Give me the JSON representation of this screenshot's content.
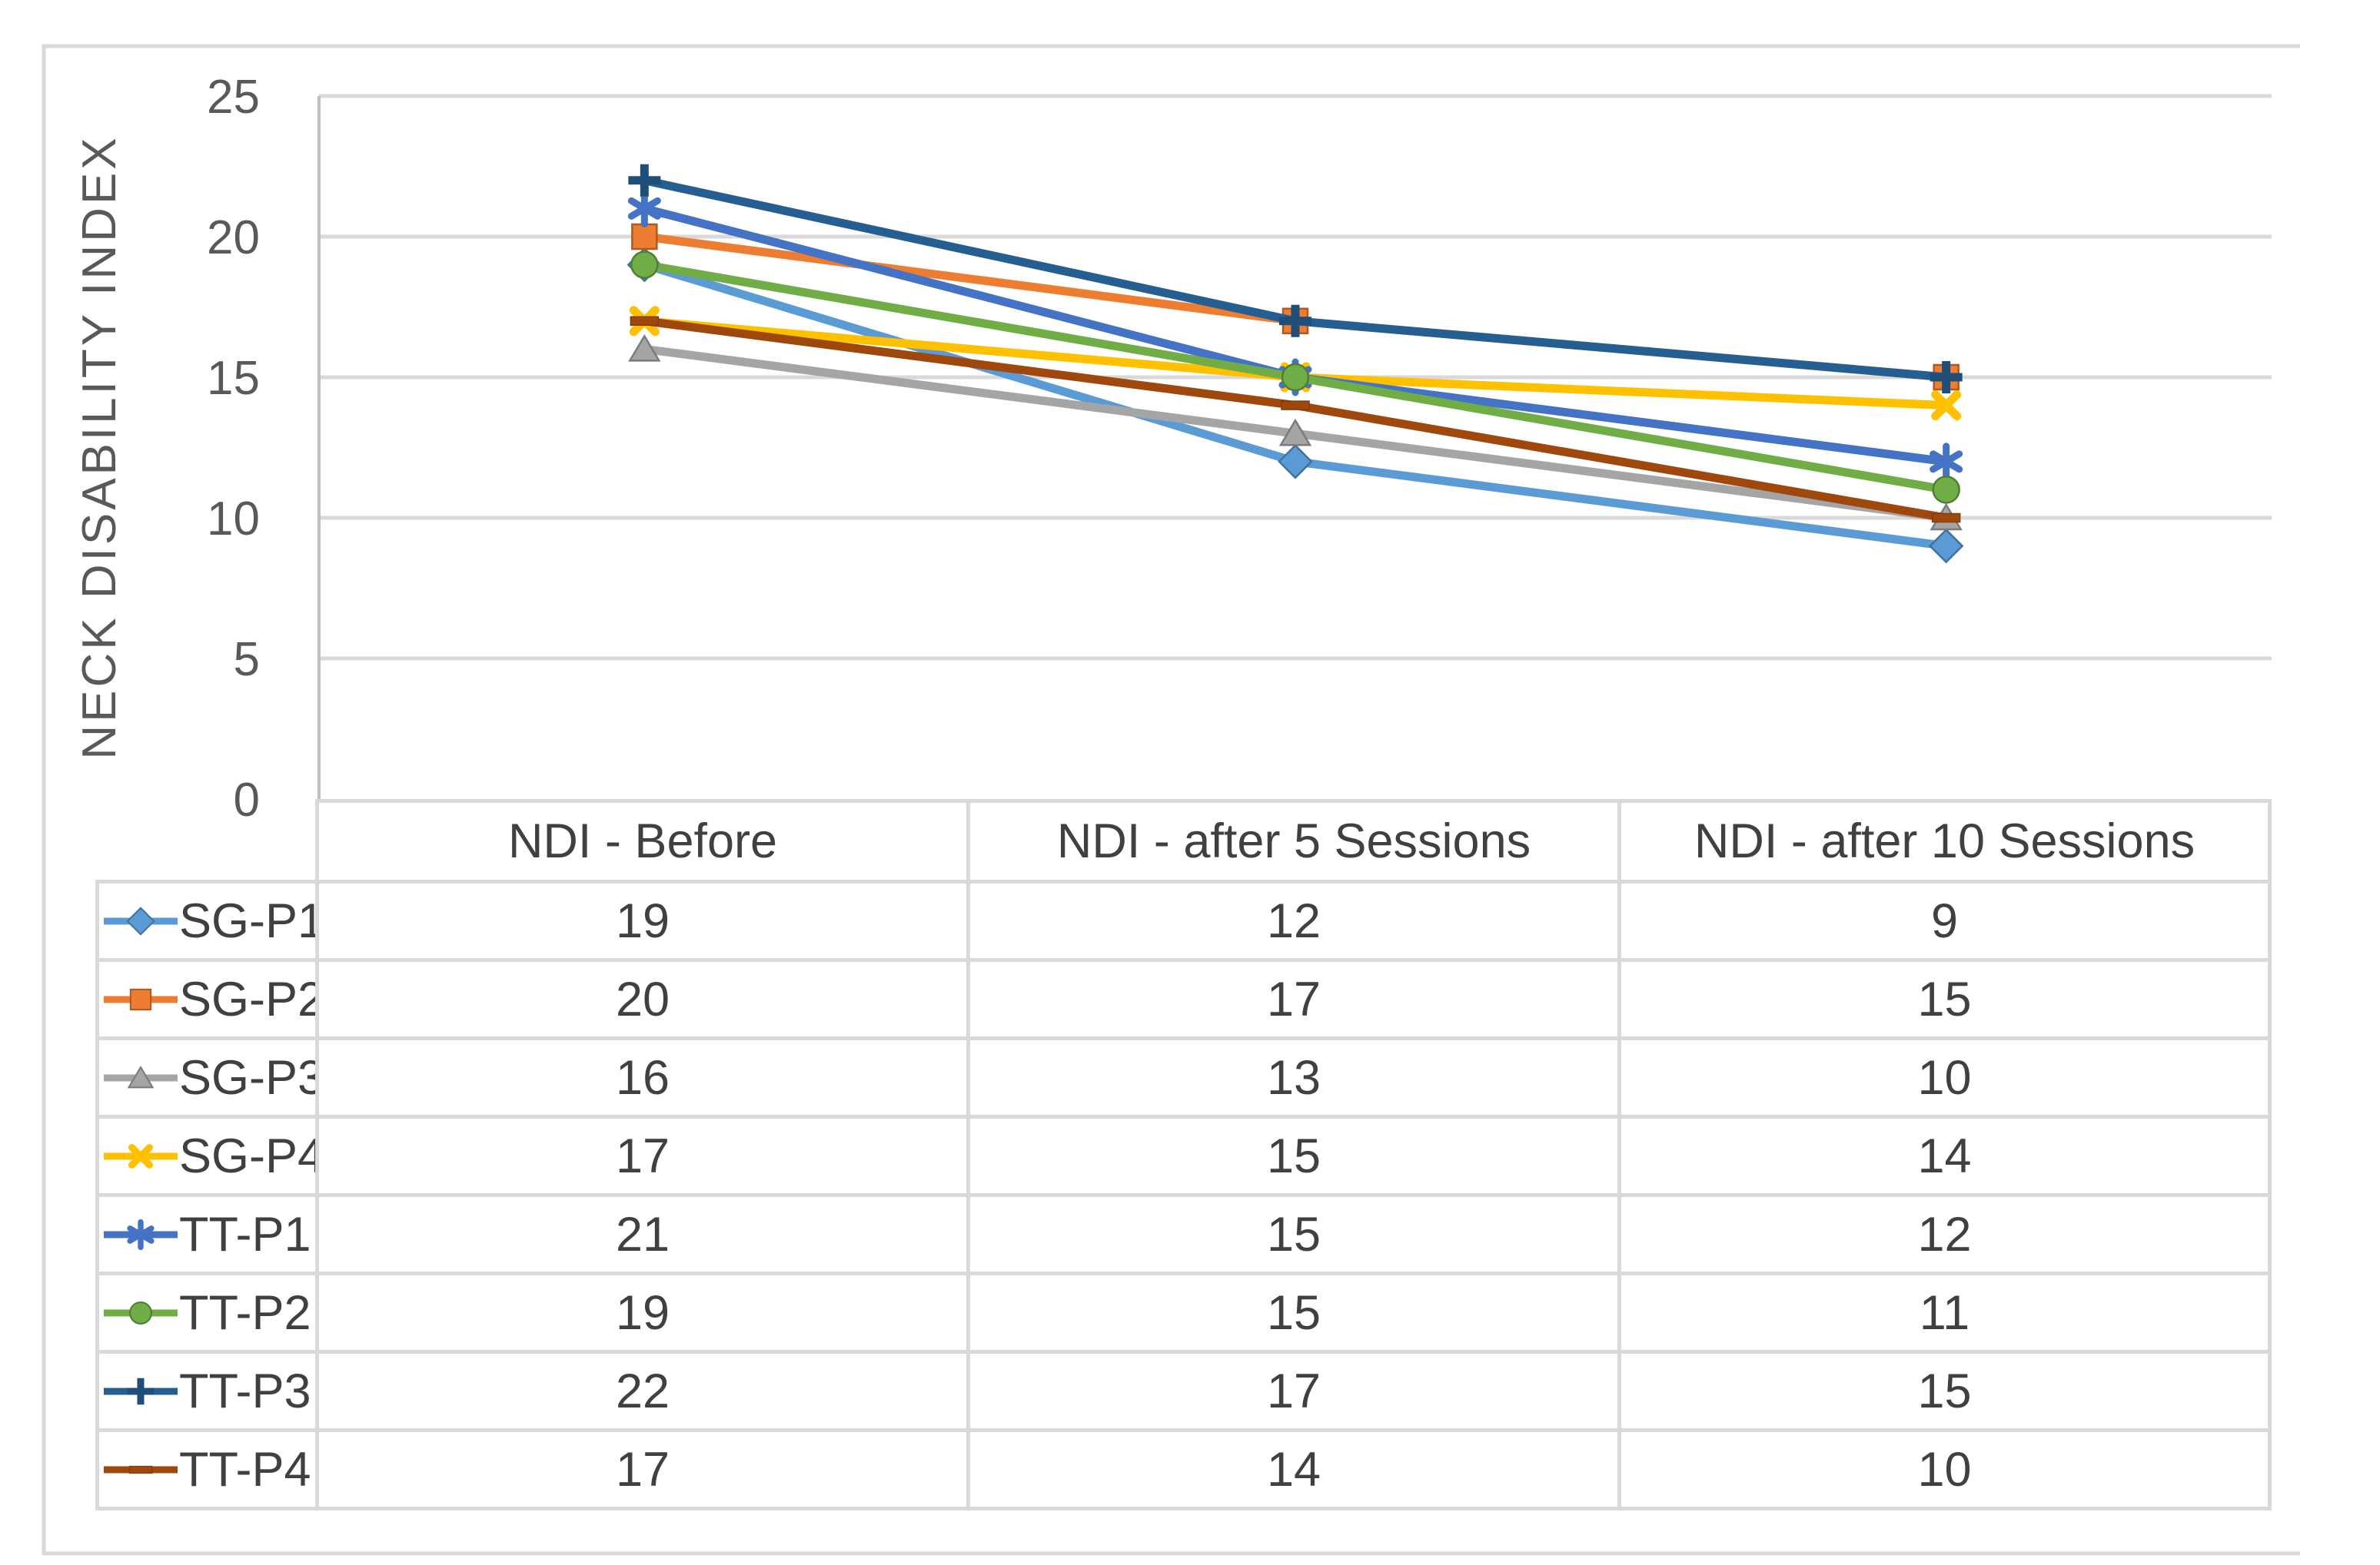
{
  "chart_data": {
    "type": "line",
    "title": "",
    "xlabel": "",
    "ylabel": "NECK DISABILITY INDEX",
    "ylim": [
      0,
      25
    ],
    "yticks": [
      0,
      5,
      10,
      15,
      20,
      25
    ],
    "grid": true,
    "legend_position": "table-left-keys",
    "categories": [
      "NDI - Before",
      "NDI - after 5 Sessions",
      "NDI - after 10 Sessions"
    ],
    "series": [
      {
        "name": "SG-P1",
        "values": [
          19,
          12,
          9
        ],
        "color": "#5B9BD5",
        "edge": "#41719C",
        "marker": "diamond"
      },
      {
        "name": "SG-P2",
        "values": [
          20,
          17,
          15
        ],
        "color": "#ED7D31",
        "edge": "#AE5A21",
        "marker": "square"
      },
      {
        "name": "SG-P3",
        "values": [
          16,
          13,
          10
        ],
        "color": "#A5A5A5",
        "edge": "#7B7B7B",
        "marker": "triangle"
      },
      {
        "name": "SG-P4",
        "values": [
          17,
          15,
          14
        ],
        "color": "#FFC000",
        "edge": "#BC8C00",
        "marker": "x"
      },
      {
        "name": "TT-P1",
        "values": [
          21,
          15,
          12
        ],
        "color": "#4472C4",
        "edge": "#2F5597",
        "marker": "asterisk"
      },
      {
        "name": "TT-P2",
        "values": [
          19,
          15,
          11
        ],
        "color": "#70AD47",
        "edge": "#507E32",
        "marker": "circle"
      },
      {
        "name": "TT-P3",
        "values": [
          22,
          17,
          15
        ],
        "color": "#255E91",
        "edge": "#1F4E79",
        "marker": "plus"
      },
      {
        "name": "TT-P4",
        "values": [
          17,
          14,
          10
        ],
        "color": "#9E480E",
        "edge": "#843C0C",
        "marker": "dash"
      }
    ]
  },
  "colors": {
    "grid": "#D9D9D9",
    "frame": "#D9D9D9",
    "axis_line": "#BFBFBF",
    "axis_text": "#595959",
    "table_text": "#404040",
    "table_border": "#D9D9D9",
    "background": "#FFFFFF"
  }
}
